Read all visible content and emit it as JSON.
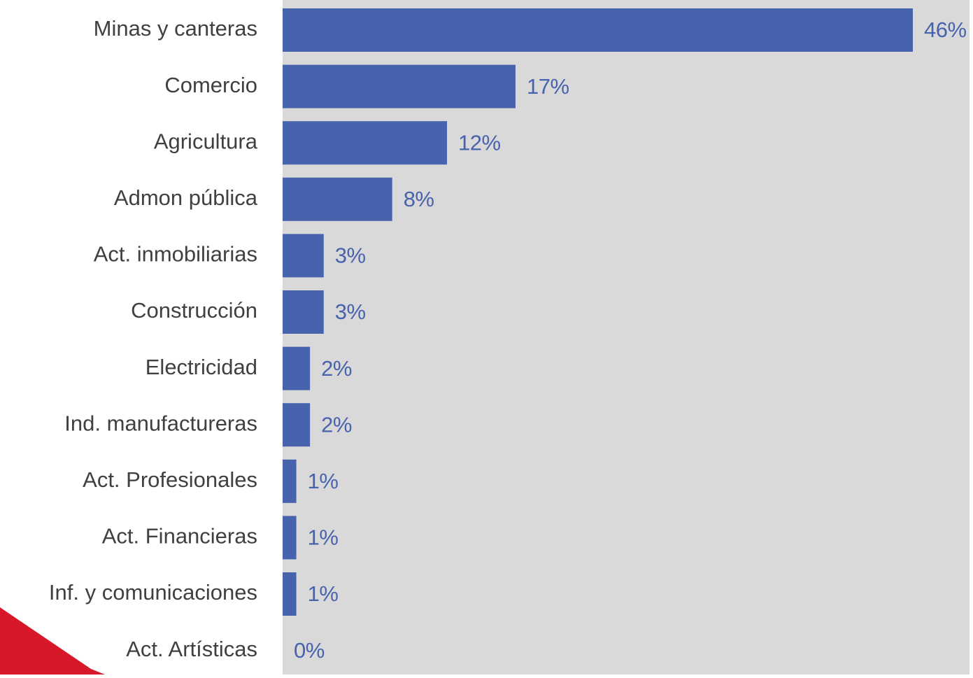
{
  "chart_data": {
    "type": "bar",
    "orientation": "horizontal",
    "title": "",
    "xlabel": "",
    "ylabel": "",
    "categories": [
      "Minas y canteras",
      "Comercio",
      "Agricultura",
      "Admon pública",
      "Act. inmobiliarias",
      "Construcción",
      "Electricidad",
      "Ind. manufactureras",
      "Act. Profesionales",
      "Act. Financieras",
      "Inf. y comunicaciones",
      "Act. Artísticas"
    ],
    "values": [
      46,
      17,
      12,
      8,
      3,
      3,
      2,
      2,
      1,
      1,
      1,
      0
    ],
    "data_labels": [
      "46%",
      "17%",
      "12%",
      "8%",
      "3%",
      "3%",
      "2%",
      "2%",
      "1%",
      "1%",
      "1%",
      "0%"
    ],
    "unit": "%",
    "xlim": [
      0,
      50
    ],
    "grid": false,
    "legend": "none",
    "colors": {
      "bar": "#4863ad",
      "plot_background": "#d9d9d9",
      "value_label": "#4863ad",
      "category_label": "#404040",
      "corner_accent": "#d7182a"
    }
  }
}
